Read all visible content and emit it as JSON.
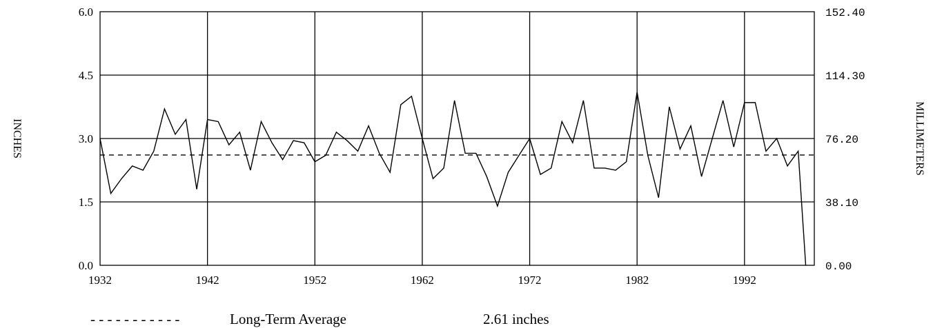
{
  "chart_data": {
    "type": "line",
    "ylabel_left": "INCHES",
    "ylabel_right": "MILLIMETERS",
    "ylim": [
      0,
      6
    ],
    "yticks_left": [
      "0.0",
      "1.5",
      "3.0",
      "4.5",
      "6.0"
    ],
    "yticks_right": [
      "0.00",
      "38.10",
      "76.20",
      "114.30",
      "152.40"
    ],
    "xlim": [
      1932,
      1998.5
    ],
    "xticks": [
      "1932",
      "1942",
      "1952",
      "1962",
      "1972",
      "1982",
      "1992"
    ],
    "grid": true,
    "series": [
      {
        "x": [
          1932,
          1933,
          1934,
          1935,
          1936,
          1937,
          1938,
          1939,
          1940,
          1941,
          1942,
          1943,
          1944,
          1945,
          1946,
          1947,
          1948,
          1949,
          1950,
          1951,
          1952,
          1953,
          1954,
          1955,
          1956,
          1957,
          1958,
          1959,
          1960,
          1961,
          1962,
          1963,
          1964,
          1965,
          1966,
          1967,
          1968,
          1969,
          1970,
          1971,
          1972,
          1973,
          1974,
          1975,
          1976,
          1977,
          1978,
          1979,
          1980,
          1981,
          1982,
          1983,
          1984,
          1985,
          1986,
          1987,
          1988,
          1989,
          1990,
          1991,
          1992,
          1993,
          1994,
          1995,
          1996,
          1997,
          1997.7
        ],
        "values": [
          3.0,
          1.7,
          2.05,
          2.35,
          2.25,
          2.7,
          3.7,
          3.1,
          3.45,
          1.8,
          3.45,
          3.4,
          2.85,
          3.15,
          2.25,
          3.4,
          2.9,
          2.5,
          2.95,
          2.9,
          2.45,
          2.6,
          3.15,
          2.95,
          2.7,
          3.3,
          2.65,
          2.2,
          3.8,
          4.0,
          3.0,
          2.05,
          2.3,
          3.9,
          2.65,
          2.65,
          2.1,
          1.4,
          2.2,
          2.6,
          3.0,
          2.15,
          2.3,
          3.4,
          2.9,
          3.9,
          2.3,
          2.3,
          2.25,
          2.45,
          4.1,
          2.6,
          1.6,
          3.75,
          2.75,
          3.3,
          2.1,
          3.0,
          3.9,
          2.8,
          3.85,
          3.85,
          2.7,
          3.0,
          2.35,
          2.7,
          0.0
        ]
      }
    ],
    "reference_line": {
      "value": 2.61,
      "style": "dashed"
    }
  },
  "legend": {
    "dashes": "- - - - - - - - - - -",
    "label": "Long-Term Average",
    "value": "2.61 inches"
  }
}
